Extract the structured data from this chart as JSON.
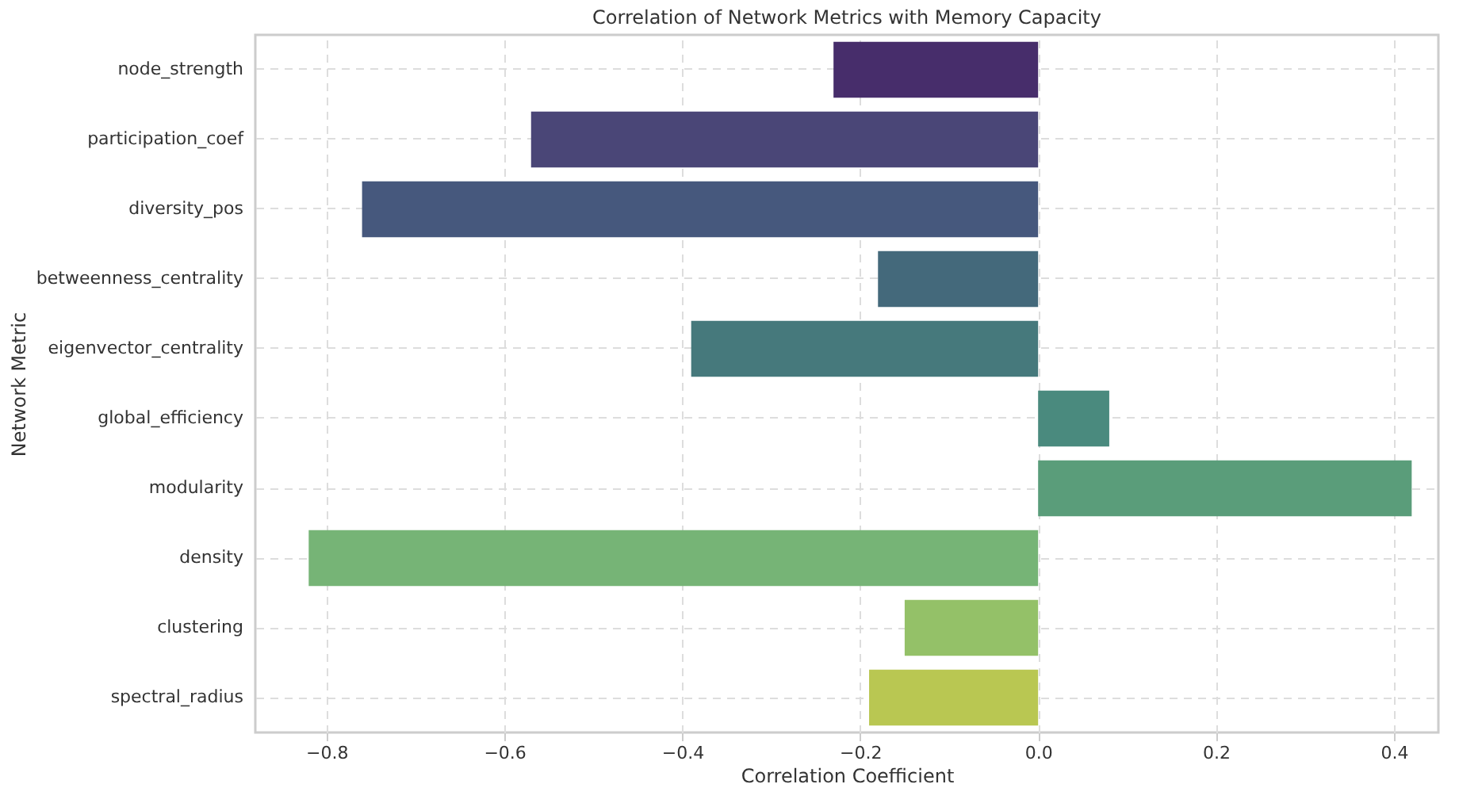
{
  "chart_data": {
    "type": "bar",
    "orientation": "horizontal",
    "title": "Correlation of Network Metrics with Memory Capacity",
    "xlabel": "Correlation Coefficient",
    "ylabel": "Network Metric",
    "categories": [
      "node_strength",
      "participation_coef",
      "diversity_pos",
      "betweenness_centrality",
      "eigenvector_centrality",
      "global_efficiency",
      "modularity",
      "density",
      "clustering",
      "spectral_radius"
    ],
    "values": [
      -0.23,
      -0.57,
      -0.76,
      -0.18,
      -0.39,
      0.08,
      0.42,
      -0.82,
      -0.15,
      -0.19
    ],
    "colors": [
      "#472d6b",
      "#4a4677",
      "#46587d",
      "#44697b",
      "#46797c",
      "#4a8a7e",
      "#5a9d7a",
      "#76b476",
      "#94c168",
      "#b9c752"
    ],
    "xlim": [
      -0.88,
      0.45
    ],
    "xticks": [
      {
        "value": -0.8,
        "label": "−0.8"
      },
      {
        "value": -0.6,
        "label": "−0.6"
      },
      {
        "value": -0.4,
        "label": "−0.4"
      },
      {
        "value": -0.2,
        "label": "−0.2"
      },
      {
        "value": 0,
        "label": "0.0"
      },
      {
        "value": 0.2,
        "label": "0.2"
      },
      {
        "value": 0.4,
        "label": "0.4"
      }
    ],
    "grid": true
  }
}
